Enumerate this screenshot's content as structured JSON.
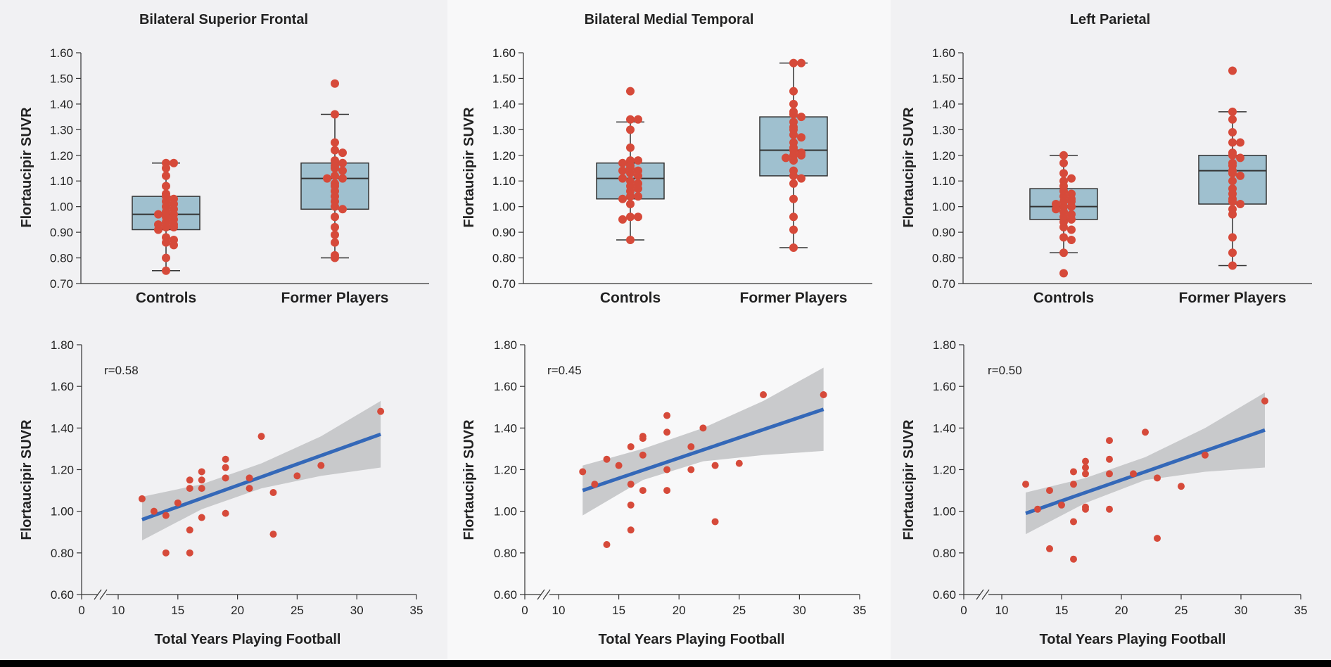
{
  "colors": {
    "panel_bg_1": "#f1f1f3",
    "panel_bg_2": "#f8f8f9",
    "box_fill": "#9fc0cf",
    "box_stroke": "#333333",
    "dot": "#d64a3a",
    "fit_line": "#3468b8",
    "ci_band": "#c3c4c7",
    "axis": "#333333"
  },
  "chart_data": [
    {
      "type": "box",
      "title": "Bilateral Superior Frontal",
      "ylabel": "Flortaucipir SUVR",
      "ylim": [
        0.7,
        1.6
      ],
      "yticks": [
        "0.70",
        "0.80",
        "0.90",
        "1.00",
        "1.10",
        "1.20",
        "1.30",
        "1.40",
        "1.50",
        "1.60"
      ],
      "categories": [
        "Controls",
        "Former Players"
      ],
      "boxes": [
        {
          "name": "Controls",
          "min": 0.75,
          "q1": 0.91,
          "median": 0.97,
          "q3": 1.04,
          "max": 1.17,
          "points": [
            1.17,
            1.17,
            1.15,
            1.12,
            1.08,
            1.05,
            1.04,
            1.03,
            1.02,
            1.01,
            1.0,
            0.99,
            0.98,
            0.97,
            0.97,
            0.96,
            0.95,
            0.94,
            0.93,
            0.93,
            0.92,
            0.92,
            0.91,
            0.88,
            0.87,
            0.86,
            0.85,
            0.8,
            0.75
          ]
        },
        {
          "name": "Former Players",
          "min": 0.8,
          "q1": 0.99,
          "median": 1.11,
          "q3": 1.17,
          "max": 1.36,
          "points": [
            1.48,
            1.36,
            1.25,
            1.22,
            1.21,
            1.18,
            1.17,
            1.16,
            1.15,
            1.14,
            1.12,
            1.11,
            1.11,
            1.09,
            1.08,
            1.06,
            1.04,
            1.02,
            1.0,
            0.99,
            0.96,
            0.92,
            0.89,
            0.86,
            0.81,
            0.8
          ]
        }
      ]
    },
    {
      "type": "box",
      "title": "Bilateral Medial Temporal",
      "ylabel": "Flortaucipir SUVR",
      "ylim": [
        0.7,
        1.6
      ],
      "yticks": [
        "0.70",
        "0.80",
        "0.90",
        "1.00",
        "1.10",
        "1.20",
        "1.30",
        "1.40",
        "1.50",
        "1.60"
      ],
      "categories": [
        "Controls",
        "Former Players"
      ],
      "boxes": [
        {
          "name": "Controls",
          "min": 0.87,
          "q1": 1.03,
          "median": 1.11,
          "q3": 1.17,
          "max": 1.33,
          "points": [
            1.45,
            1.34,
            1.34,
            1.3,
            1.23,
            1.18,
            1.18,
            1.17,
            1.16,
            1.15,
            1.14,
            1.14,
            1.13,
            1.12,
            1.11,
            1.1,
            1.09,
            1.08,
            1.07,
            1.06,
            1.04,
            1.04,
            1.03,
            1.01,
            0.96,
            0.96,
            0.95,
            0.87
          ]
        },
        {
          "name": "Former Players",
          "min": 0.84,
          "q1": 1.12,
          "median": 1.22,
          "q3": 1.35,
          "max": 1.56,
          "points": [
            1.56,
            1.56,
            1.45,
            1.4,
            1.37,
            1.36,
            1.35,
            1.33,
            1.31,
            1.3,
            1.28,
            1.27,
            1.25,
            1.23,
            1.22,
            1.21,
            1.2,
            1.2,
            1.19,
            1.18,
            1.14,
            1.12,
            1.11,
            1.09,
            1.03,
            0.96,
            0.91,
            0.84
          ]
        }
      ]
    },
    {
      "type": "box",
      "title": "Left Parietal",
      "ylabel": "Flortaucipir SUVR",
      "ylim": [
        0.7,
        1.6
      ],
      "yticks": [
        "0.70",
        "0.80",
        "0.90",
        "1.00",
        "1.10",
        "1.20",
        "1.30",
        "1.40",
        "1.50",
        "1.60"
      ],
      "categories": [
        "Controls",
        "Former Players"
      ],
      "boxes": [
        {
          "name": "Controls",
          "min": 0.82,
          "q1": 0.95,
          "median": 1.0,
          "q3": 1.07,
          "max": 1.2,
          "points": [
            1.2,
            1.17,
            1.13,
            1.11,
            1.1,
            1.08,
            1.06,
            1.05,
            1.04,
            1.03,
            1.02,
            1.02,
            1.01,
            1.0,
            1.0,
            0.99,
            0.98,
            0.97,
            0.96,
            0.95,
            0.94,
            0.92,
            0.91,
            0.88,
            0.87,
            0.82,
            0.74
          ]
        },
        {
          "name": "Former Players",
          "min": 0.77,
          "q1": 1.01,
          "median": 1.14,
          "q3": 1.2,
          "max": 1.37,
          "points": [
            1.53,
            1.37,
            1.34,
            1.29,
            1.25,
            1.25,
            1.21,
            1.2,
            1.19,
            1.17,
            1.16,
            1.14,
            1.13,
            1.12,
            1.1,
            1.07,
            1.05,
            1.03,
            1.02,
            1.01,
            0.99,
            0.97,
            0.88,
            0.82,
            0.77
          ]
        }
      ]
    },
    {
      "type": "scatter",
      "annotation": "r=0.58",
      "xlabel": "Total Years Playing Football",
      "ylabel": "Flortaucipir SUVR",
      "xlim": [
        10,
        35
      ],
      "ylim": [
        0.6,
        1.8
      ],
      "xticks": [
        "0",
        "10",
        "15",
        "20",
        "25",
        "30",
        "35"
      ],
      "yticks": [
        "0.60",
        "0.80",
        "1.00",
        "1.20",
        "1.40",
        "1.60",
        "1.80"
      ],
      "points": [
        [
          12,
          1.06
        ],
        [
          13,
          1.0
        ],
        [
          14,
          0.98
        ],
        [
          14,
          0.8
        ],
        [
          15,
          1.04
        ],
        [
          16,
          1.15
        ],
        [
          16,
          1.11
        ],
        [
          16,
          0.91
        ],
        [
          16,
          0.8
        ],
        [
          17,
          1.19
        ],
        [
          17,
          1.15
        ],
        [
          17,
          1.11
        ],
        [
          17,
          0.97
        ],
        [
          19,
          1.25
        ],
        [
          19,
          1.21
        ],
        [
          19,
          1.16
        ],
        [
          19,
          0.99
        ],
        [
          21,
          1.16
        ],
        [
          21,
          1.11
        ],
        [
          22,
          1.36
        ],
        [
          23,
          1.09
        ],
        [
          23,
          0.89
        ],
        [
          25,
          1.17
        ],
        [
          27,
          1.22
        ],
        [
          32,
          1.48
        ]
      ],
      "fit": {
        "x": [
          12,
          32
        ],
        "y": [
          0.96,
          1.37
        ]
      },
      "ci": {
        "x": [
          12,
          17,
          22,
          27,
          32
        ],
        "lower": [
          0.86,
          1.01,
          1.11,
          1.17,
          1.21
        ],
        "upper": [
          1.07,
          1.13,
          1.23,
          1.36,
          1.53
        ]
      }
    },
    {
      "type": "scatter",
      "annotation": "r=0.45",
      "xlabel": "Total Years Playing Football",
      "ylabel": "Flortaucipir SUVR",
      "xlim": [
        10,
        35
      ],
      "ylim": [
        0.6,
        1.8
      ],
      "xticks": [
        "0",
        "10",
        "15",
        "20",
        "25",
        "30",
        "35"
      ],
      "yticks": [
        "0.60",
        "0.80",
        "1.00",
        "1.20",
        "1.40",
        "1.60",
        "1.80"
      ],
      "points": [
        [
          12,
          1.19
        ],
        [
          13,
          1.13
        ],
        [
          14,
          1.25
        ],
        [
          14,
          0.84
        ],
        [
          15,
          1.22
        ],
        [
          16,
          1.31
        ],
        [
          16,
          1.13
        ],
        [
          16,
          1.03
        ],
        [
          16,
          0.91
        ],
        [
          17,
          1.36
        ],
        [
          17,
          1.35
        ],
        [
          17,
          1.27
        ],
        [
          17,
          1.1
        ],
        [
          19,
          1.46
        ],
        [
          19,
          1.38
        ],
        [
          19,
          1.2
        ],
        [
          19,
          1.1
        ],
        [
          21,
          1.31
        ],
        [
          21,
          1.2
        ],
        [
          22,
          1.4
        ],
        [
          23,
          1.22
        ],
        [
          23,
          0.95
        ],
        [
          25,
          1.23
        ],
        [
          27,
          1.56
        ],
        [
          32,
          1.56
        ]
      ],
      "fit": {
        "x": [
          12,
          32
        ],
        "y": [
          1.1,
          1.49
        ]
      },
      "ci": {
        "x": [
          12,
          17,
          22,
          27,
          32
        ],
        "lower": [
          0.98,
          1.15,
          1.24,
          1.27,
          1.29
        ],
        "upper": [
          1.22,
          1.3,
          1.4,
          1.53,
          1.69
        ]
      }
    },
    {
      "type": "scatter",
      "annotation": "r=0.50",
      "xlabel": "Total Years Playing Football",
      "ylabel": "Flortaucipir SUVR",
      "xlim": [
        10,
        35
      ],
      "ylim": [
        0.6,
        1.8
      ],
      "xticks": [
        "0",
        "10",
        "15",
        "20",
        "25",
        "30",
        "35"
      ],
      "yticks": [
        "0.60",
        "0.80",
        "1.00",
        "1.20",
        "1.40",
        "1.60",
        "1.80"
      ],
      "points": [
        [
          12,
          1.13
        ],
        [
          13,
          1.01
        ],
        [
          14,
          1.1
        ],
        [
          14,
          0.82
        ],
        [
          15,
          1.03
        ],
        [
          16,
          1.19
        ],
        [
          16,
          1.13
        ],
        [
          16,
          0.95
        ],
        [
          16,
          0.77
        ],
        [
          17,
          1.24
        ],
        [
          17,
          1.21
        ],
        [
          17,
          1.18
        ],
        [
          17,
          1.02
        ],
        [
          17,
          1.01
        ],
        [
          19,
          1.34
        ],
        [
          19,
          1.25
        ],
        [
          19,
          1.18
        ],
        [
          19,
          1.01
        ],
        [
          21,
          1.18
        ],
        [
          22,
          1.38
        ],
        [
          23,
          1.16
        ],
        [
          23,
          0.87
        ],
        [
          25,
          1.12
        ],
        [
          27,
          1.27
        ],
        [
          32,
          1.53
        ]
      ],
      "fit": {
        "x": [
          12,
          32
        ],
        "y": [
          0.99,
          1.39
        ]
      },
      "ci": {
        "x": [
          12,
          17,
          22,
          27,
          32
        ],
        "lower": [
          0.89,
          1.04,
          1.15,
          1.19,
          1.21
        ],
        "upper": [
          1.09,
          1.16,
          1.26,
          1.4,
          1.57
        ]
      }
    }
  ]
}
